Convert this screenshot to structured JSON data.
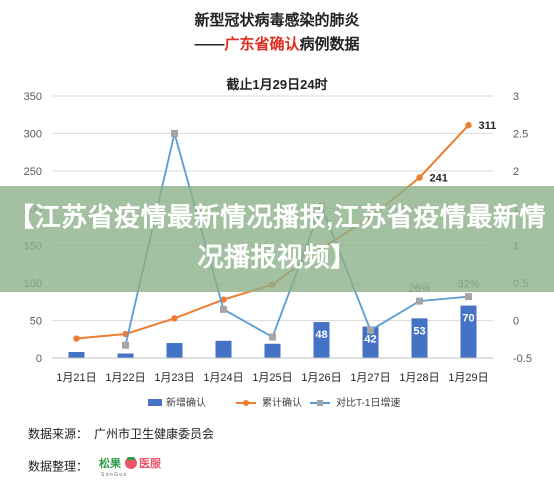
{
  "header": {
    "title_line1": "新型冠状病毒感染的肺炎",
    "title_line2_prefix": "——",
    "title_line2_red": "广东省确认",
    "title_line2_rest": "病例数据",
    "subtitle": "截止1月29日24时"
  },
  "banner": {
    "text": "【江苏省疫情最新情况播报,江苏省疫情最新情况播报视频】"
  },
  "footer": {
    "source_label": "数据来源：",
    "source_value": "广州市卫生健康委员会",
    "compiler_label": "数据整理：",
    "logo_text": "松果",
    "logo_text2": "医服",
    "logo_sub": "S o n G u o"
  },
  "chart_data": {
    "type": "bar+line",
    "categories": [
      "1月21日",
      "1月22日",
      "1月23日",
      "1月24日",
      "1月25日",
      "1月26日",
      "1月27日",
      "1月28日",
      "1月29日"
    ],
    "y_left": {
      "min": 0,
      "max": 350,
      "ticks": [
        "0",
        "50",
        "100",
        "150",
        "200",
        "250",
        "300",
        "350"
      ]
    },
    "y_right": {
      "min": -0.5,
      "max": 3,
      "ticks": [
        "-0.5",
        "0",
        "0.5",
        "1",
        "1.5",
        "2",
        "2.5",
        "3"
      ]
    },
    "series": [
      {
        "name": "新增确认",
        "kind": "bar",
        "axis": "left",
        "color": "#4472c4",
        "values": [
          8,
          6,
          20,
          23,
          19,
          48,
          42,
          53,
          70
        ],
        "labels": [
          "",
          "",
          "",
          "",
          "",
          "48",
          "42",
          "53",
          "70"
        ]
      },
      {
        "name": "累计确认",
        "kind": "line",
        "axis": "left",
        "color": "#ed7d31",
        "values": [
          26,
          32,
          53,
          78,
          98,
          146,
          188,
          241,
          311
        ],
        "labels": [
          "",
          "",
          "",
          "",
          "",
          "",
          "",
          "241",
          "311"
        ]
      },
      {
        "name": "对比T-1日增速",
        "kind": "line",
        "axis": "right",
        "color": "#5b9bd5",
        "marker_color": "#a5a5a5",
        "values": [
          null,
          -0.33,
          2.5,
          0.15,
          -0.22,
          1.53,
          -0.13,
          0.26,
          0.32
        ],
        "labels": [
          "",
          "",
          "",
          "",
          "",
          "",
          "",
          "26%",
          "32%"
        ]
      }
    ],
    "legend_position": "bottom",
    "grid": true
  }
}
